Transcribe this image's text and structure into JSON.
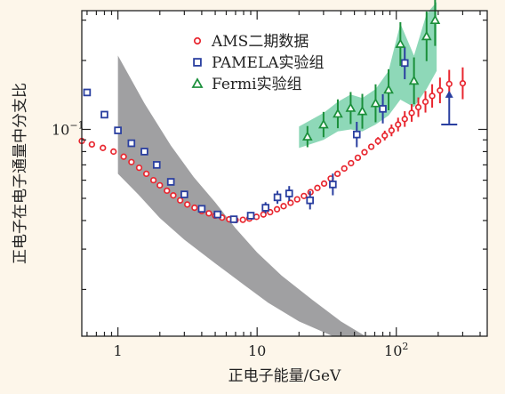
{
  "chart_data": {
    "type": "scatter",
    "xlabel": "正电子能量/GeV",
    "ylabel": "正电子在电子通量中分支比",
    "xscale": "log",
    "yscale": "log",
    "xlim": [
      0.55,
      450
    ],
    "ylim": [
      0.0125,
      0.33
    ],
    "x_ticks": [
      {
        "value": 1,
        "label": "1"
      },
      {
        "value": 10,
        "label": "10"
      },
      {
        "value": 100,
        "label": "10",
        "sup": "2"
      }
    ],
    "y_ticks": [
      {
        "value": 0.1,
        "label": "10",
        "sup": "−1"
      }
    ],
    "legend": {
      "placement": "top-center",
      "entries": [
        {
          "series": "AMS",
          "label": "AMS二期数据"
        },
        {
          "series": "PAMELA",
          "label": "PAMELA实验组"
        },
        {
          "series": "Fermi",
          "label": "Fermi实验组"
        }
      ]
    },
    "colors": {
      "AMS": "#e8262f",
      "PAMELA": "#2a3fa0",
      "Fermi": "#1a8f3a",
      "Fermi_band": "#5ec79a",
      "gray_band": "#8f8f92"
    },
    "series": [
      {
        "name": "AMS二期数据",
        "marker": "circle-open",
        "points": [
          {
            "x": 0.55,
            "y": 0.089
          },
          {
            "x": 0.65,
            "y": 0.086
          },
          {
            "x": 0.78,
            "y": 0.083
          },
          {
            "x": 0.93,
            "y": 0.08
          },
          {
            "x": 1.1,
            "y": 0.076
          },
          {
            "x": 1.25,
            "y": 0.072
          },
          {
            "x": 1.42,
            "y": 0.068
          },
          {
            "x": 1.6,
            "y": 0.064
          },
          {
            "x": 1.8,
            "y": 0.06
          },
          {
            "x": 2.0,
            "y": 0.057
          },
          {
            "x": 2.25,
            "y": 0.054
          },
          {
            "x": 2.5,
            "y": 0.0515
          },
          {
            "x": 2.8,
            "y": 0.049
          },
          {
            "x": 3.15,
            "y": 0.047
          },
          {
            "x": 3.55,
            "y": 0.0455
          },
          {
            "x": 4.0,
            "y": 0.044
          },
          {
            "x": 4.5,
            "y": 0.043
          },
          {
            "x": 5.0,
            "y": 0.042
          },
          {
            "x": 5.6,
            "y": 0.0412
          },
          {
            "x": 6.3,
            "y": 0.0405
          },
          {
            "x": 7.0,
            "y": 0.0402
          },
          {
            "x": 7.9,
            "y": 0.0403
          },
          {
            "x": 8.8,
            "y": 0.0408
          },
          {
            "x": 9.9,
            "y": 0.0415
          },
          {
            "x": 11.1,
            "y": 0.0425
          },
          {
            "x": 12.4,
            "y": 0.0435
          },
          {
            "x": 13.9,
            "y": 0.0448
          },
          {
            "x": 15.5,
            "y": 0.0462
          },
          {
            "x": 17.4,
            "y": 0.0478
          },
          {
            "x": 19.4,
            "y": 0.0495
          },
          {
            "x": 21.7,
            "y": 0.0512
          },
          {
            "x": 24.2,
            "y": 0.0532
          },
          {
            "x": 27.1,
            "y": 0.0555
          },
          {
            "x": 30.3,
            "y": 0.058
          },
          {
            "x": 33.8,
            "y": 0.061
          },
          {
            "x": 37.8,
            "y": 0.064
          },
          {
            "x": 42.3,
            "y": 0.0675
          },
          {
            "x": 47.3,
            "y": 0.0712
          },
          {
            "x": 52.9,
            "y": 0.0752
          },
          {
            "x": 59.1,
            "y": 0.0795
          },
          {
            "x": 66.1,
            "y": 0.084
          },
          {
            "x": 73.9,
            "y": 0.089
          },
          {
            "x": 82.6,
            "y": 0.094
          },
          {
            "x": 92.4,
            "y": 0.099
          },
          {
            "x": 103,
            "y": 0.105
          },
          {
            "x": 115,
            "y": 0.111
          },
          {
            "x": 129,
            "y": 0.118
          },
          {
            "x": 144,
            "y": 0.125
          },
          {
            "x": 162,
            "y": 0.132
          },
          {
            "x": 181,
            "y": 0.14
          },
          {
            "x": 206,
            "y": 0.148
          },
          {
            "x": 240,
            "y": 0.158
          },
          {
            "x": 300,
            "y": 0.159
          }
        ]
      },
      {
        "name": "PAMELA实验组",
        "marker": "square-open",
        "points": [
          {
            "x": 0.6,
            "y": 0.145
          },
          {
            "x": 0.8,
            "y": 0.116
          },
          {
            "x": 1.0,
            "y": 0.099
          },
          {
            "x": 1.25,
            "y": 0.087
          },
          {
            "x": 1.55,
            "y": 0.08
          },
          {
            "x": 1.9,
            "y": 0.07
          },
          {
            "x": 2.4,
            "y": 0.059
          },
          {
            "x": 3.0,
            "y": 0.052
          },
          {
            "x": 4.0,
            "y": 0.045
          },
          {
            "x": 5.2,
            "y": 0.0425
          },
          {
            "x": 6.8,
            "y": 0.0405
          },
          {
            "x": 9.0,
            "y": 0.042
          },
          {
            "x": 11.5,
            "y": 0.0455
          },
          {
            "x": 14.0,
            "y": 0.0505
          },
          {
            "x": 17.0,
            "y": 0.0525
          },
          {
            "x": 24.0,
            "y": 0.049
          },
          {
            "x": 35.0,
            "y": 0.0575
          },
          {
            "x": 52.0,
            "y": 0.095
          },
          {
            "x": 80.0,
            "y": 0.123
          },
          {
            "x": 115,
            "y": 0.195
          }
        ]
      },
      {
        "name": "Fermi实验组",
        "marker": "triangle-open",
        "points": [
          {
            "x": 23.0,
            "y": 0.093
          },
          {
            "x": 30.0,
            "y": 0.105
          },
          {
            "x": 38.0,
            "y": 0.117
          },
          {
            "x": 47.0,
            "y": 0.124
          },
          {
            "x": 57.0,
            "y": 0.12
          },
          {
            "x": 71.0,
            "y": 0.13
          },
          {
            "x": 88.0,
            "y": 0.149
          },
          {
            "x": 107,
            "y": 0.236
          },
          {
            "x": 134,
            "y": 0.163
          },
          {
            "x": 165,
            "y": 0.255
          },
          {
            "x": 190,
            "y": 0.3
          }
        ]
      }
    ]
  }
}
